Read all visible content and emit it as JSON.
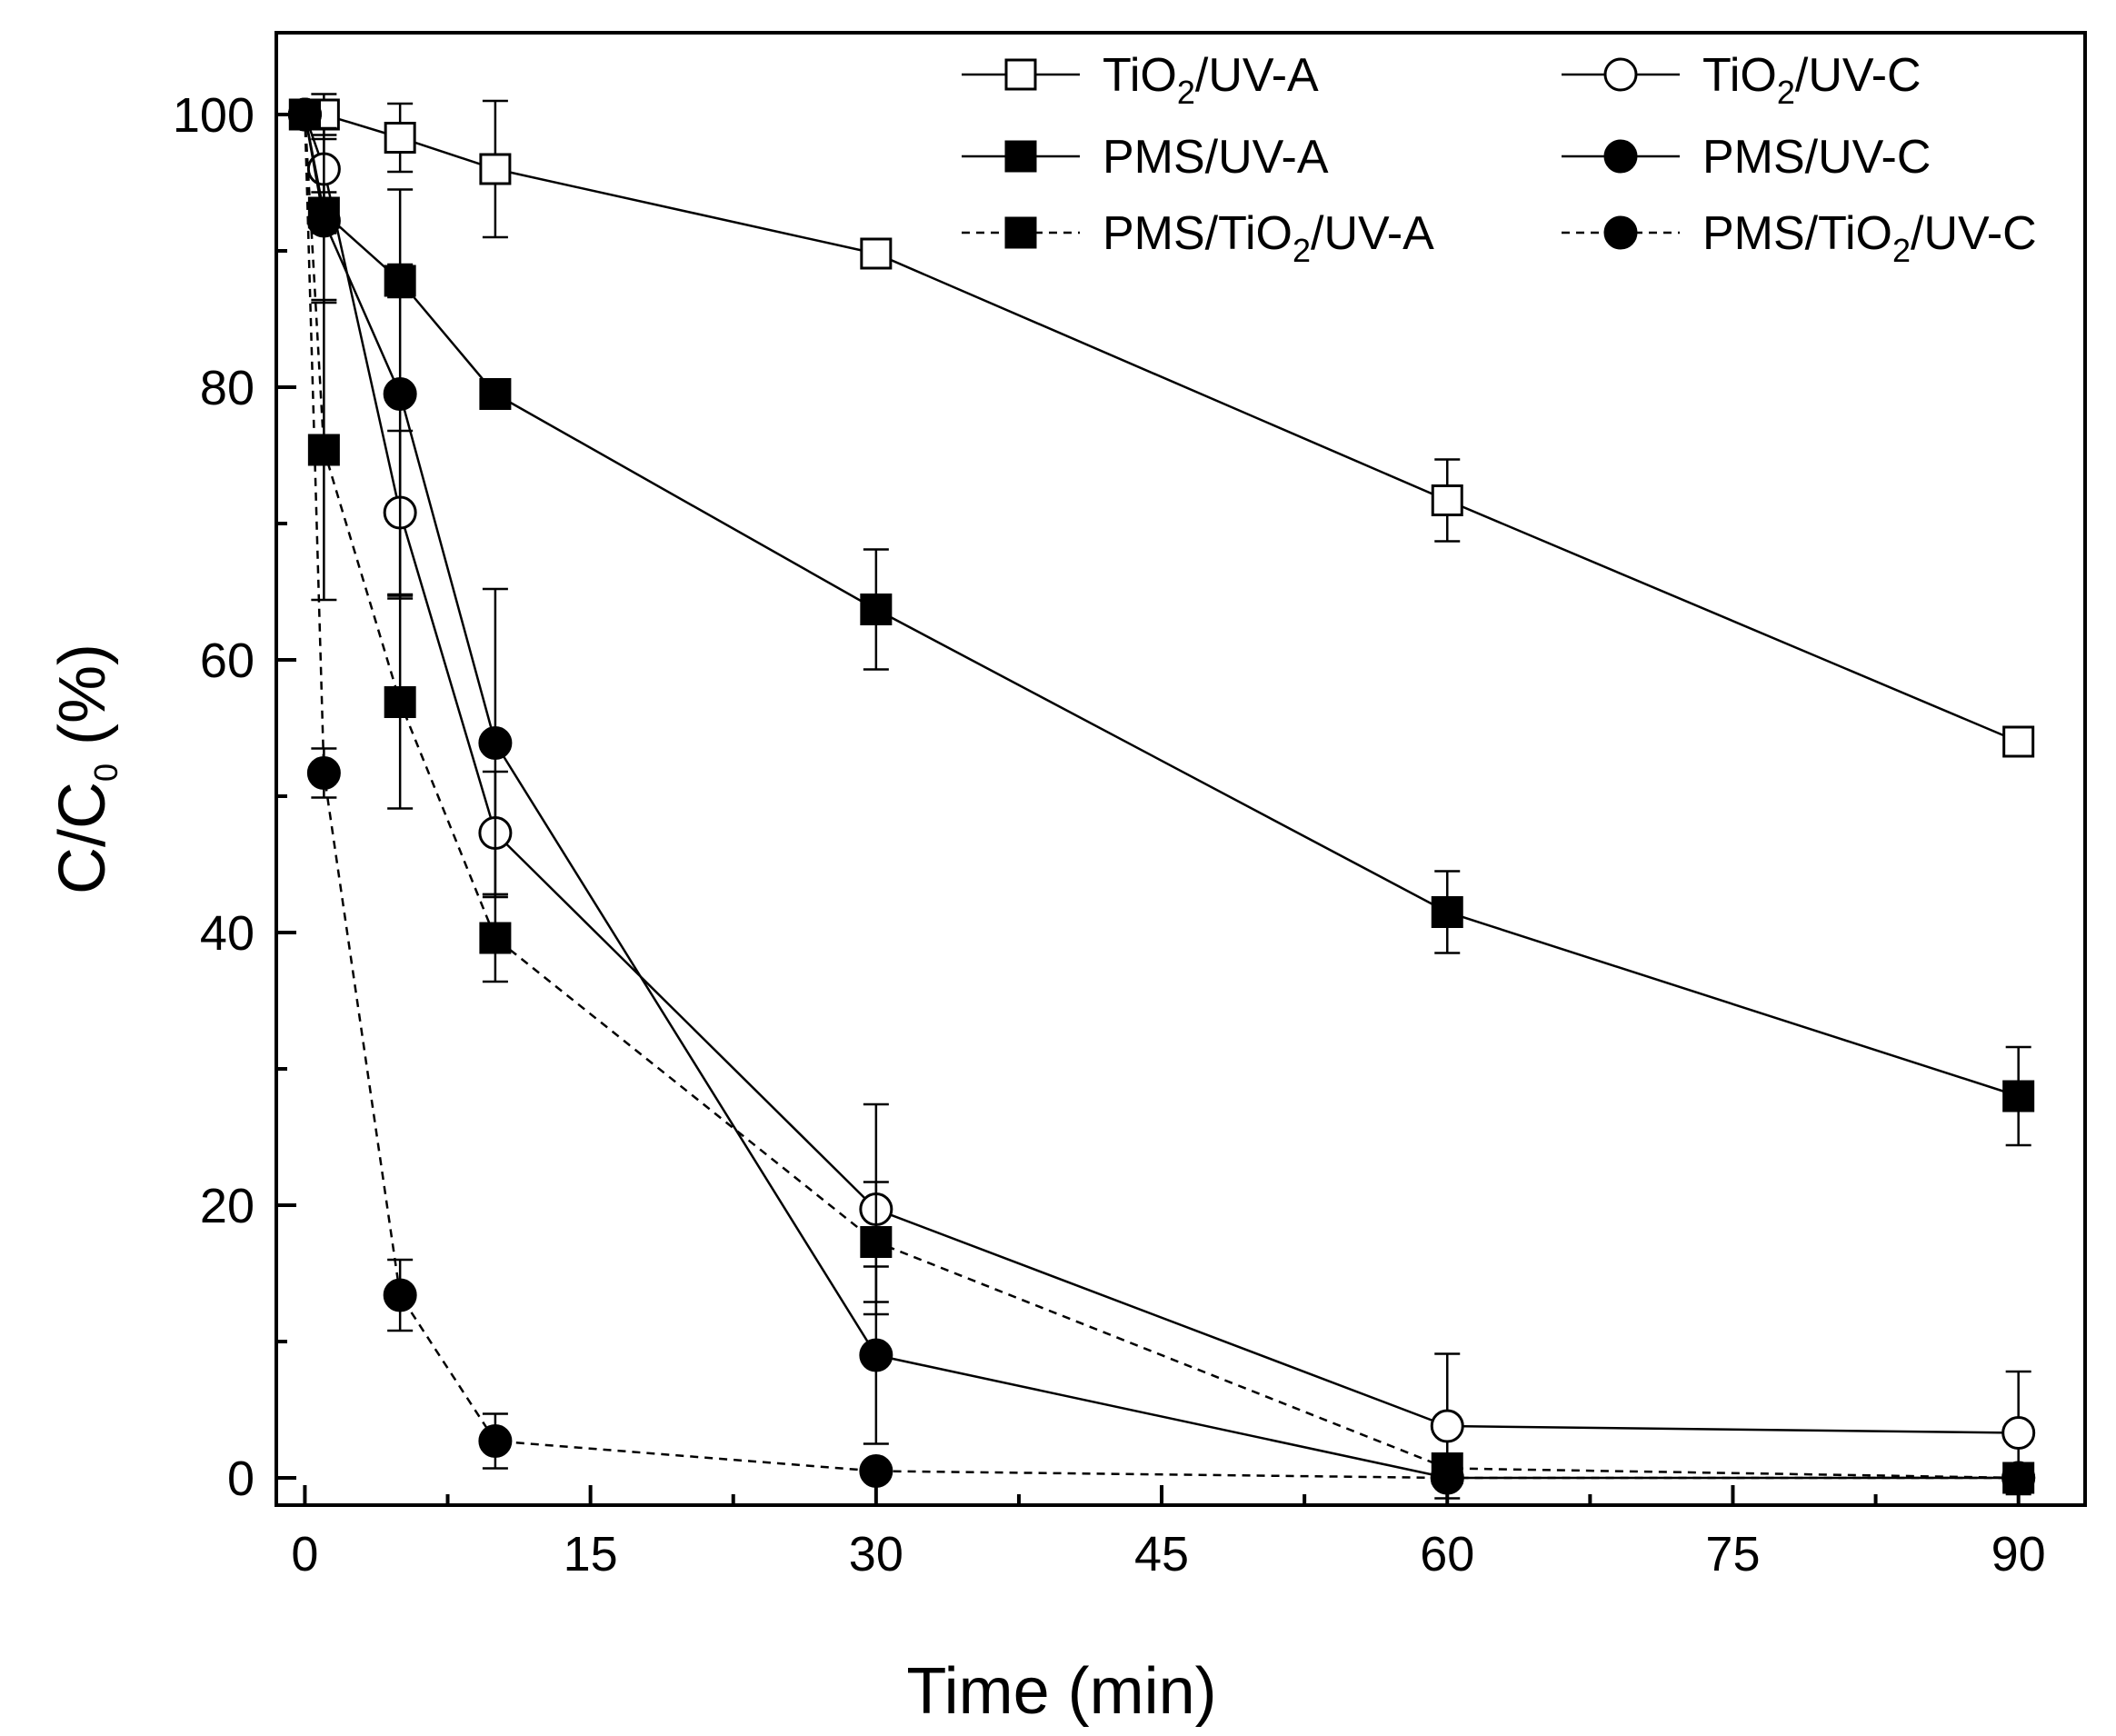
{
  "chart_data": {
    "type": "line",
    "title": "",
    "xlabel": "Time (min)",
    "ylabel": {
      "main": "C/C",
      "subscript": "0",
      "suffix": " (%)"
    },
    "xlim": [
      -1.5,
      93.5
    ],
    "ylim": [
      -2,
      106
    ],
    "xticks": [
      0,
      15,
      30,
      45,
      60,
      75,
      90
    ],
    "xtick_labels": [
      "0",
      "15",
      "30",
      "45",
      "60",
      "75",
      "90"
    ],
    "yticks": [
      0,
      20,
      40,
      60,
      80,
      100
    ],
    "ytick_labels": [
      "0",
      "20",
      "40",
      "60",
      "80",
      "100"
    ],
    "grid": false,
    "legend_position": "top-right",
    "series": [
      {
        "key": "tio2-uv-a",
        "name": "TiO2/UV-A",
        "label_parts": [
          "TiO",
          "2",
          "/UV-A"
        ],
        "marker": "square-open",
        "line": "solid",
        "x": [
          0,
          1,
          5,
          10,
          30,
          60,
          90
        ],
        "y": [
          100,
          100,
          98.3,
          96,
          89.8,
          71.7,
          54
        ],
        "err": [
          0,
          1.5,
          2.5,
          5,
          0.8,
          3,
          0.8
        ]
      },
      {
        "key": "tio2-uv-c",
        "name": "TiO2/UV-C",
        "label_parts": [
          "TiO",
          "2",
          "/UV-C"
        ],
        "marker": "circle-open",
        "line": "solid",
        "x": [
          0,
          1,
          5,
          10,
          30,
          60,
          90
        ],
        "y": [
          100,
          96,
          70.8,
          47.3,
          19.7,
          3.8,
          3.3
        ],
        "err": [
          0,
          3,
          6,
          4.5,
          7.7,
          5.3,
          4.5
        ]
      },
      {
        "key": "pms-uv-a",
        "name": "PMS/UV-A",
        "label_parts": [
          "PMS/UV-A"
        ],
        "marker": "square-filled",
        "line": "solid",
        "x": [
          0,
          1,
          5,
          10,
          30,
          60,
          90
        ],
        "y": [
          100,
          92.8,
          87.8,
          79.5,
          63.7,
          41.5,
          28
        ],
        "err": [
          0,
          1.5,
          1.2,
          0.6,
          4.4,
          3,
          3.6
        ]
      },
      {
        "key": "pms-uv-c",
        "name": "PMS/UV-C",
        "label_parts": [
          "PMS/UV-C"
        ],
        "marker": "circle-filled",
        "line": "solid",
        "x": [
          0,
          1,
          5,
          10,
          30,
          60,
          90
        ],
        "y": [
          100,
          92.2,
          79.5,
          53.9,
          9,
          0,
          0
        ],
        "err": [
          0,
          6,
          15,
          11.3,
          6.5,
          0,
          0
        ]
      },
      {
        "key": "pms-tio2-uv-a",
        "name": "PMS/TiO2/UV-A",
        "label_parts": [
          "PMS/TiO",
          "2",
          "/UV-A"
        ],
        "marker": "square-filled",
        "line": "dashed",
        "x": [
          0,
          1,
          5,
          10,
          30,
          60,
          90
        ],
        "y": [
          100,
          75.4,
          56.9,
          39.6,
          17.3,
          0.7,
          0
        ],
        "err": [
          0,
          11,
          7.8,
          3.2,
          4.4,
          0,
          0
        ]
      },
      {
        "key": "pms-tio2-uv-c",
        "name": "PMS/TiO2/UV-C",
        "label_parts": [
          "PMS/TiO",
          "2",
          "/UV-C"
        ],
        "marker": "circle-filled",
        "line": "dashed",
        "x": [
          0,
          1,
          5,
          10,
          30,
          60,
          90
        ],
        "y": [
          100,
          51.7,
          13.4,
          2.7,
          0.5,
          0,
          0
        ],
        "err": [
          0,
          1.8,
          2.6,
          2,
          0,
          0,
          0
        ]
      }
    ]
  }
}
